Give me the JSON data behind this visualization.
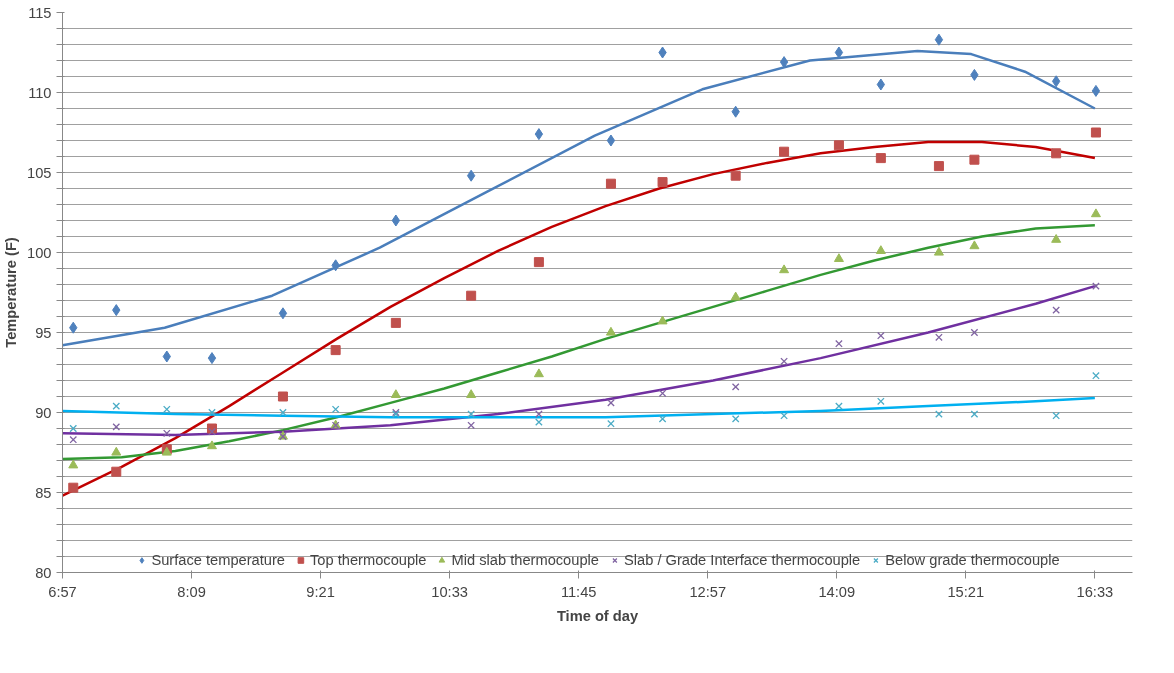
{
  "chart_data": {
    "type": "scatter",
    "xlabel": "Time of day",
    "ylabel": "Temperature (F)",
    "xlim": [
      6.95,
      16.9
    ],
    "ylim": [
      80,
      115
    ],
    "xticks": [
      {
        "value": 6.95,
        "label": "6:57"
      },
      {
        "value": 8.15,
        "label": "8:09"
      },
      {
        "value": 9.35,
        "label": "9:21"
      },
      {
        "value": 10.55,
        "label": "10:33"
      },
      {
        "value": 11.75,
        "label": "11:45"
      },
      {
        "value": 12.95,
        "label": "12:57"
      },
      {
        "value": 14.15,
        "label": "14:09"
      },
      {
        "value": 15.35,
        "label": "15:21"
      },
      {
        "value": 16.55,
        "label": "16:33"
      }
    ],
    "yticks": [
      80,
      {
        "value": 81,
        "label": null
      },
      {
        "value": 82,
        "label": null
      },
      {
        "value": 83,
        "label": null
      },
      {
        "value": 84,
        "label": null
      },
      85,
      {
        "value": 86,
        "label": null
      },
      {
        "value": 87,
        "label": null
      },
      {
        "value": 88,
        "label": null
      },
      {
        "value": 89,
        "label": null
      },
      90,
      {
        "value": 91,
        "label": null
      },
      {
        "value": 92,
        "label": null
      },
      {
        "value": 93,
        "label": null
      },
      {
        "value": 94,
        "label": null
      },
      95,
      {
        "value": 96,
        "label": null
      },
      {
        "value": 97,
        "label": null
      },
      {
        "value": 98,
        "label": null
      },
      {
        "value": 99,
        "label": null
      },
      100,
      {
        "value": 101,
        "label": null
      },
      {
        "value": 102,
        "label": null
      },
      {
        "value": 103,
        "label": null
      },
      {
        "value": 104,
        "label": null
      },
      105,
      {
        "value": 106,
        "label": null
      },
      {
        "value": 107,
        "label": null
      },
      {
        "value": 108,
        "label": null
      },
      {
        "value": 109,
        "label": null
      },
      110,
      {
        "value": 111,
        "label": null
      },
      {
        "value": 112,
        "label": null
      },
      {
        "value": 113,
        "label": null
      },
      {
        "value": 114,
        "label": null
      },
      115
    ],
    "grid": "y",
    "legend": "bottom",
    "x": [
      7.05,
      7.45,
      7.92,
      8.34,
      9.0,
      9.49,
      10.05,
      10.75,
      11.38,
      12.05,
      12.53,
      13.21,
      13.66,
      14.17,
      14.56,
      15.1,
      15.43,
      16.19,
      16.56
    ],
    "series": [
      {
        "name": "Surface temperature",
        "color": "#4f81bd",
        "marker": "diamond",
        "values": [
          95.3,
          96.4,
          93.5,
          93.4,
          96.2,
          99.2,
          102.0,
          104.8,
          107.4,
          107.0,
          112.5,
          108.8,
          111.9,
          112.5,
          110.5,
          113.3,
          111.1,
          110.7,
          110.1
        ]
      },
      {
        "name": "Top thermocouple",
        "color": "#c0504d",
        "marker": "square",
        "values": [
          85.3,
          86.3,
          87.7,
          89.0,
          91.0,
          93.9,
          95.6,
          97.3,
          99.4,
          104.3,
          104.4,
          104.8,
          106.3,
          106.7,
          105.9,
          105.4,
          105.8,
          106.2,
          107.5
        ]
      },
      {
        "name": "Mid slab thermocouple",
        "color": "#9bbb59",
        "marker": "triangle",
        "values": [
          86.7,
          87.5,
          87.5,
          87.9,
          88.5,
          89.2,
          91.1,
          91.1,
          92.4,
          95.0,
          95.7,
          97.2,
          98.9,
          99.6,
          100.1,
          100.0,
          100.4,
          100.8,
          102.4
        ]
      },
      {
        "name": "Slab / Grade Interface thermocouple",
        "color": "#8064a2",
        "marker": "cross",
        "values": [
          88.3,
          89.1,
          88.7,
          88.8,
          88.5,
          89.2,
          90.0,
          89.2,
          89.9,
          90.6,
          91.2,
          91.6,
          93.2,
          94.3,
          94.8,
          94.7,
          95.0,
          96.4,
          97.9
        ]
      },
      {
        "name": "Below grade thermocouple",
        "color": "#4bacc6",
        "marker": "cross",
        "values": [
          89.0,
          90.4,
          90.2,
          90.0,
          90.0,
          90.2,
          89.9,
          89.9,
          89.4,
          89.3,
          89.6,
          89.6,
          89.8,
          90.4,
          90.7,
          89.9,
          89.9,
          89.8,
          92.3
        ]
      },
      {
        "type": "line",
        "color": "#4a7ebb",
        "x": [
          6.95,
          7.9,
          8.9,
          9.9,
          10.9,
          11.9,
          12.9,
          13.9,
          14.9,
          15.4,
          15.9,
          16.55
        ],
        "values": [
          94.2,
          95.3,
          97.3,
          100.3,
          103.8,
          107.3,
          110.2,
          112.0,
          112.6,
          112.4,
          111.3,
          109.0
        ]
      },
      {
        "type": "line",
        "color": "#c00000",
        "x": [
          6.95,
          7.5,
          8.0,
          8.5,
          9.0,
          9.5,
          10.0,
          10.5,
          11.0,
          11.5,
          12.0,
          12.5,
          13.0,
          13.5,
          14.0,
          14.5,
          15.0,
          15.5,
          16.0,
          16.55
        ],
        "values": [
          84.8,
          86.6,
          88.4,
          90.4,
          92.5,
          94.6,
          96.6,
          98.4,
          100.1,
          101.6,
          102.9,
          104.0,
          104.9,
          105.6,
          106.2,
          106.6,
          106.9,
          106.9,
          106.6,
          105.9
        ]
      },
      {
        "type": "line",
        "color": "#339933",
        "x": [
          6.95,
          7.5,
          8.0,
          8.5,
          9.0,
          9.5,
          10.0,
          10.5,
          11.0,
          11.5,
          12.0,
          12.5,
          13.0,
          13.5,
          14.0,
          14.5,
          15.0,
          15.5,
          16.0,
          16.55
        ],
        "values": [
          87.1,
          87.2,
          87.6,
          88.2,
          88.9,
          89.7,
          90.6,
          91.5,
          92.5,
          93.5,
          94.6,
          95.6,
          96.6,
          97.6,
          98.6,
          99.5,
          100.3,
          101.0,
          101.5,
          101.7
        ]
      },
      {
        "type": "line",
        "color": "#7030a0",
        "x": [
          6.95,
          8.0,
          9.0,
          10.0,
          11.0,
          12.0,
          13.0,
          14.0,
          15.0,
          16.0,
          16.55
        ],
        "values": [
          88.7,
          88.6,
          88.8,
          89.2,
          89.9,
          90.8,
          92.0,
          93.4,
          95.0,
          96.8,
          97.9
        ]
      },
      {
        "type": "line",
        "color": "#00b0f0",
        "x": [
          6.95,
          8.0,
          9.0,
          10.0,
          11.0,
          12.0,
          13.0,
          14.0,
          15.0,
          16.0,
          16.55
        ],
        "values": [
          90.1,
          89.9,
          89.8,
          89.7,
          89.7,
          89.7,
          89.9,
          90.1,
          90.4,
          90.7,
          90.9
        ]
      }
    ]
  }
}
